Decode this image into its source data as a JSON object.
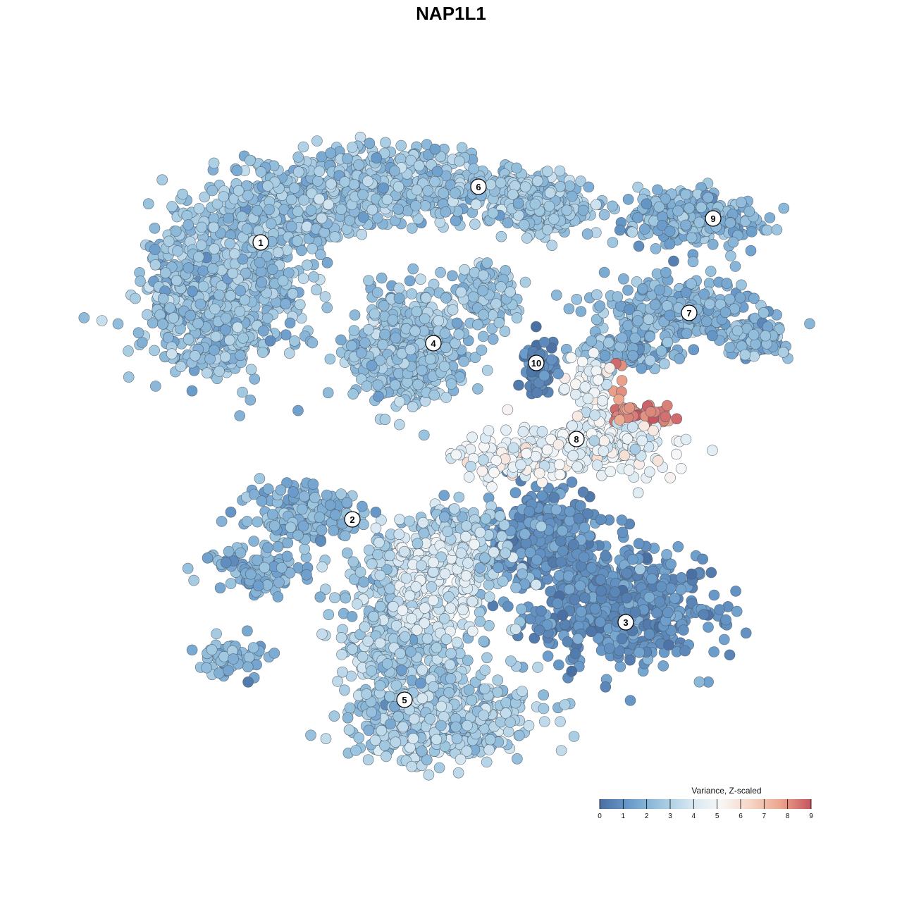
{
  "chart_data": {
    "type": "scatter",
    "title": "NAP1L1",
    "xlabel": "",
    "ylabel": "",
    "grid": false,
    "legend_placement": "bottom-right",
    "colorbar": {
      "title": "Variance, Z-scaled",
      "min": 0,
      "max": 9,
      "ticks": [
        0,
        1,
        2,
        3,
        4,
        5,
        6,
        7,
        8,
        9
      ],
      "colors": [
        "#4a6fa3",
        "#6a9ccb",
        "#9cc5df",
        "#d4e6f1",
        "#f7f7f7",
        "#f6d5c4",
        "#eba58b",
        "#c6535f"
      ]
    },
    "clusters": [
      {
        "label": "1",
        "mean_value": 2.4,
        "spread": 0.55
      },
      {
        "label": "2",
        "mean_value": 2.0,
        "spread": 0.5
      },
      {
        "label": "3",
        "mean_value": 1.0,
        "spread": 0.45
      },
      {
        "label": "4",
        "mean_value": 2.5,
        "spread": 0.5
      },
      {
        "label": "5",
        "mean_value": 2.8,
        "spread": 0.6
      },
      {
        "label": "6",
        "mean_value": 2.6,
        "spread": 0.55
      },
      {
        "label": "7",
        "mean_value": 2.0,
        "spread": 0.5
      },
      {
        "label": "8",
        "mean_value": 4.6,
        "spread": 0.7
      },
      {
        "label": "9",
        "mean_value": 2.0,
        "spread": 0.5
      },
      {
        "label": "10",
        "mean_value": 0.6,
        "spread": 0.35
      }
    ]
  }
}
